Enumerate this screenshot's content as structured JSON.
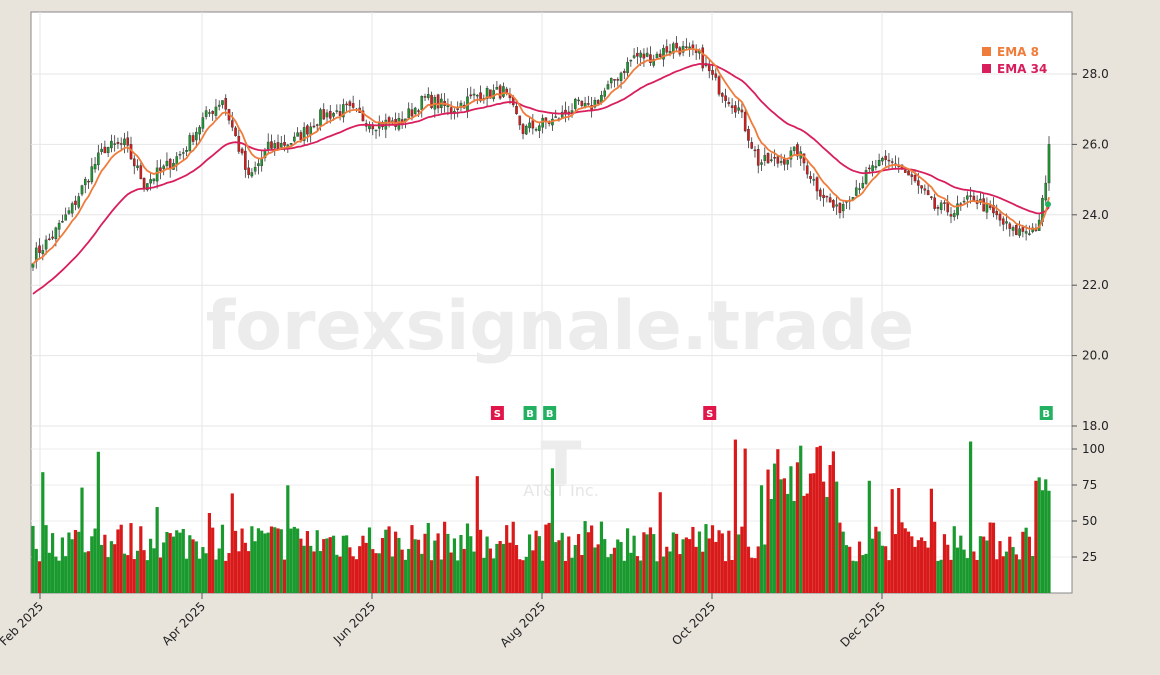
{
  "watermark": "forexsignale.trade",
  "symbol_logo": "T",
  "company_name": "AT&T Inc.",
  "colors": {
    "background": "#e8e4dc",
    "plot": "#ffffff",
    "up": "#1a9a2e",
    "down": "#d91a1a",
    "ema_fast": "#f07c3c",
    "ema_slow": "#d81e5b",
    "buy_marker": "#22b061",
    "sell_marker": "#e0164a"
  },
  "chart_data": {
    "type": "candlestick",
    "x_ticks": [
      "Feb 2025",
      "Apr 2025",
      "Jun 2025",
      "Aug 2025",
      "Oct 2025",
      "Dec 2025"
    ],
    "price_axis": {
      "ticks": [
        18.0,
        20.0,
        22.0,
        24.0,
        26.0,
        28.0
      ],
      "range": [
        17.5,
        29.3
      ]
    },
    "volume_axis": {
      "ticks": [
        25,
        50,
        75,
        100
      ],
      "range": [
        0,
        110
      ]
    },
    "legend": [
      {
        "label": "EMA 8",
        "color": "#f07c3c"
      },
      {
        "label": "EMA 34",
        "color": "#d81e5b"
      }
    ],
    "legend_position": "top-right",
    "grid": true,
    "price_waypoints": [
      [
        0,
        22.8
      ],
      [
        6,
        23.4
      ],
      [
        12,
        24.2
      ],
      [
        18,
        25.3
      ],
      [
        22,
        25.9
      ],
      [
        28,
        26.0
      ],
      [
        34,
        24.9
      ],
      [
        40,
        25.3
      ],
      [
        46,
        25.8
      ],
      [
        52,
        26.7
      ],
      [
        58,
        27.3
      ],
      [
        62,
        26.2
      ],
      [
        66,
        25.0
      ],
      [
        72,
        25.9
      ],
      [
        80,
        26.1
      ],
      [
        88,
        26.8
      ],
      [
        96,
        27.0
      ],
      [
        104,
        26.6
      ],
      [
        112,
        26.6
      ],
      [
        120,
        27.3
      ],
      [
        128,
        27.0
      ],
      [
        136,
        27.4
      ],
      [
        144,
        27.5
      ],
      [
        150,
        26.4
      ],
      [
        156,
        26.6
      ],
      [
        160,
        26.7
      ],
      [
        166,
        27.1
      ],
      [
        170,
        27.0
      ],
      [
        176,
        27.6
      ],
      [
        184,
        28.5
      ],
      [
        190,
        28.5
      ],
      [
        196,
        28.8
      ],
      [
        204,
        28.5
      ],
      [
        210,
        27.6
      ],
      [
        216,
        27.0
      ],
      [
        222,
        25.5
      ],
      [
        228,
        25.5
      ],
      [
        234,
        25.8
      ],
      [
        240,
        24.8
      ],
      [
        246,
        24.1
      ],
      [
        252,
        24.8
      ],
      [
        258,
        25.4
      ],
      [
        264,
        25.5
      ],
      [
        270,
        24.9
      ],
      [
        276,
        24.2
      ],
      [
        282,
        24.1
      ],
      [
        288,
        24.5
      ],
      [
        294,
        24.0
      ],
      [
        300,
        23.5
      ],
      [
        306,
        23.6
      ],
      [
        308,
        23.7
      ],
      [
        310,
        25.0
      ],
      [
        311,
        26.0
      ]
    ],
    "signals": [
      {
        "label": "S",
        "index": 142
      },
      {
        "label": "B",
        "index": 152
      },
      {
        "label": "B",
        "index": 158
      },
      {
        "label": "S",
        "index": 207
      },
      {
        "label": "B",
        "index": 310
      }
    ]
  }
}
